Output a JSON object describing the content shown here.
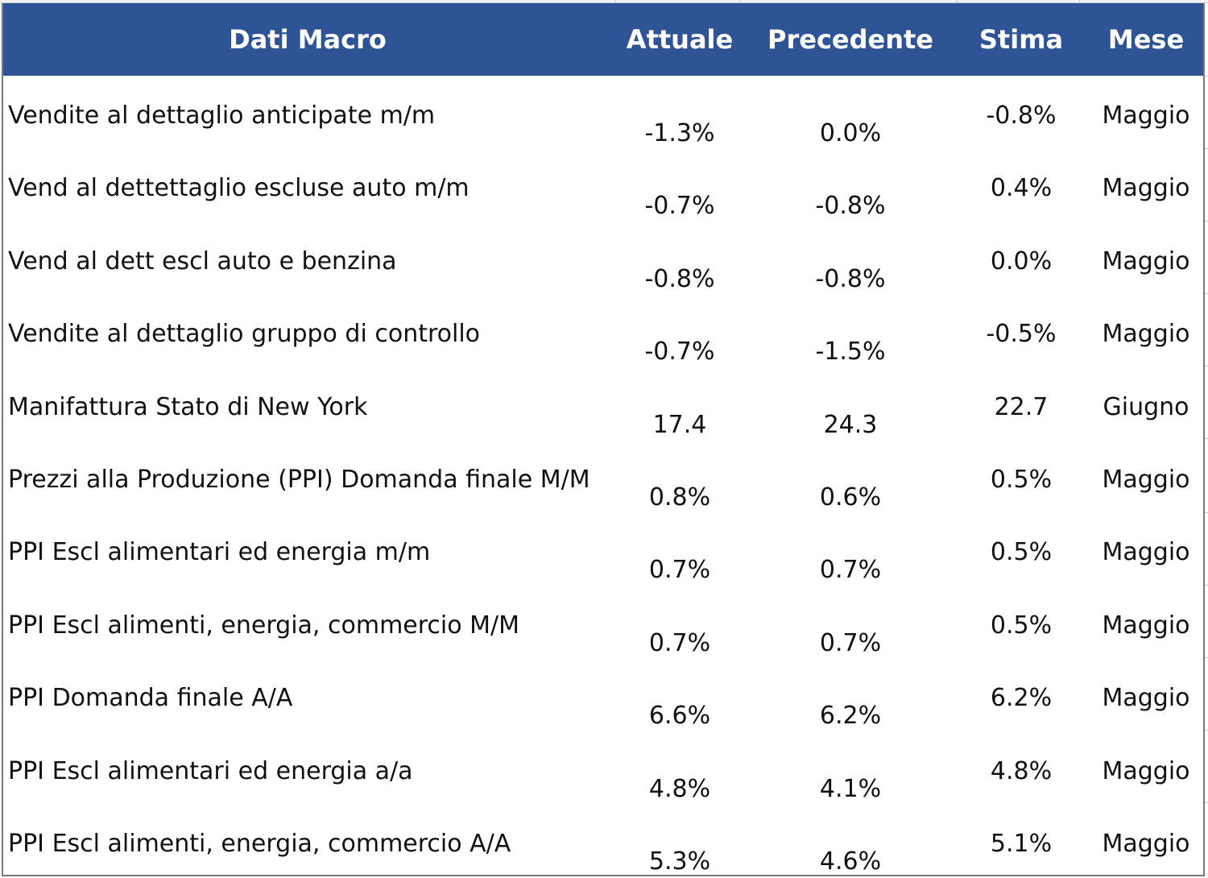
{
  "table": {
    "headers": {
      "indicator": "Dati Macro",
      "actual": "Attuale",
      "previous": "Precedente",
      "estimate": "Stima",
      "month": "Mese"
    },
    "header_color": "#2f5496",
    "rows": [
      {
        "indicator": "Vendite al dettaglio anticipate m/m",
        "actual": "-1.3%",
        "previous": "0.0%",
        "estimate": "-0.8%",
        "month": "Maggio"
      },
      {
        "indicator": "Vend al dettettaglio escluse auto m/m",
        "actual": "-0.7%",
        "previous": "-0.8%",
        "estimate": "0.4%",
        "month": "Maggio"
      },
      {
        "indicator": "Vend al dett escl auto e benzina",
        "actual": "-0.8%",
        "previous": "-0.8%",
        "estimate": "0.0%",
        "month": "Maggio"
      },
      {
        "indicator": "Vendite al dettaglio gruppo di controllo",
        "actual": "-0.7%",
        "previous": "-1.5%",
        "estimate": "-0.5%",
        "month": "Maggio"
      },
      {
        "indicator": "Manifattura Stato di New York",
        "actual": "17.4",
        "previous": "24.3",
        "estimate": "22.7",
        "month": "Giugno"
      },
      {
        "indicator": "Prezzi alla Produzione (PPI) Domanda finale M/M",
        "actual": "0.8%",
        "previous": "0.6%",
        "estimate": "0.5%",
        "month": "Maggio"
      },
      {
        "indicator": "PPI Escl alimentari ed energia m/m",
        "actual": "0.7%",
        "previous": "0.7%",
        "estimate": "0.5%",
        "month": "Maggio"
      },
      {
        "indicator": "PPI Escl alimenti, energia, commercio M/M",
        "actual": "0.7%",
        "previous": "0.7%",
        "estimate": "0.5%",
        "month": "Maggio"
      },
      {
        "indicator": "PPI Domanda finale A/A",
        "actual": "6.6%",
        "previous": "6.2%",
        "estimate": "6.2%",
        "month": "Maggio"
      },
      {
        "indicator": "PPI Escl alimentari ed energia a/a",
        "actual": "4.8%",
        "previous": "4.1%",
        "estimate": "4.8%",
        "month": "Maggio"
      },
      {
        "indicator": "PPI Escl alimenti, energia, commercio A/A",
        "actual": "5.3%",
        "previous": "4.6%",
        "estimate": "5.1%",
        "month": "Maggio"
      }
    ]
  }
}
